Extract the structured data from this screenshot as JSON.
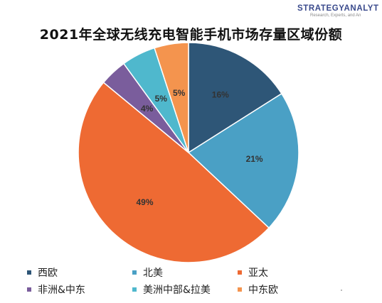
{
  "logo": {
    "main": "STRATEGYANALYT",
    "sub": "Research, Experts, and An"
  },
  "chart_data": {
    "type": "pie",
    "title": "2021年全球无线充电智能手机市场存量区域份额",
    "slices": [
      {
        "label": "西欧",
        "value": 16,
        "display": "16%",
        "color": "#2e5677"
      },
      {
        "label": "北美",
        "value": 21,
        "display": "21%",
        "color": "#4aa0c5"
      },
      {
        "label": "亚太",
        "value": 49,
        "display": "49%",
        "color": "#ee6a33"
      },
      {
        "label": "非洲&中东",
        "value": 4,
        "display": "4%",
        "color": "#7a5d9c"
      },
      {
        "label": "美洲中部&拉美",
        "value": 5,
        "display": "5%",
        "color": "#4fb8cd"
      },
      {
        "label": "中东欧",
        "value": 5,
        "display": "5%",
        "color": "#f4944e"
      }
    ],
    "legend_position": "bottom"
  }
}
